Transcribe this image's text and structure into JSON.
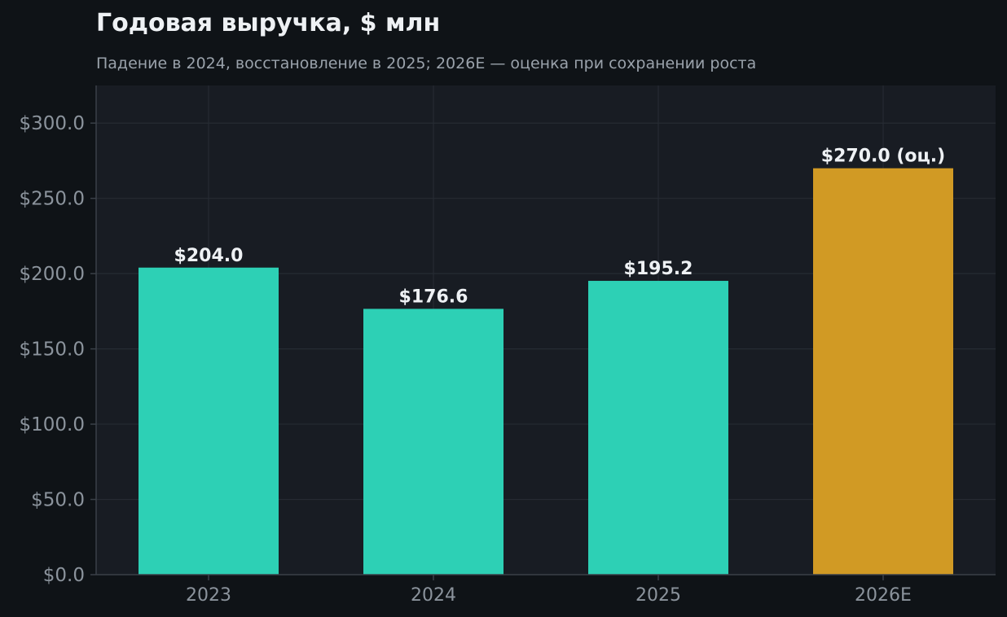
{
  "chart_data": {
    "type": "bar",
    "title": "Годовая выручка, $ млн",
    "subtitle": "Падение в 2024, восстановление в 2025; 2026E — оценка при сохранении роста",
    "xlabel": "",
    "ylabel": "",
    "categories": [
      "2023",
      "2024",
      "2025",
      "2026E"
    ],
    "values": [
      204.0,
      176.6,
      195.2,
      270.0
    ],
    "data_labels": [
      "$204.0",
      "$176.6",
      "$195.2",
      "$270.0 (оц.)"
    ],
    "estimate_flags": [
      false,
      false,
      false,
      true
    ],
    "ylim": [
      0,
      325
    ],
    "yticks": [
      0,
      50,
      100,
      150,
      200,
      250,
      300
    ],
    "ytick_labels": [
      "$0.0",
      "$50.0",
      "$100.0",
      "$150.0",
      "$200.0",
      "$250.0",
      "$300.0"
    ],
    "grid": true,
    "legend": "none",
    "colors": {
      "actual": "#2dd0b5",
      "estimate": "#d19a24",
      "page_background": "#0f1317",
      "plot_background": "#181c23",
      "grid": "#262b33",
      "axis": "#3a4048"
    }
  }
}
